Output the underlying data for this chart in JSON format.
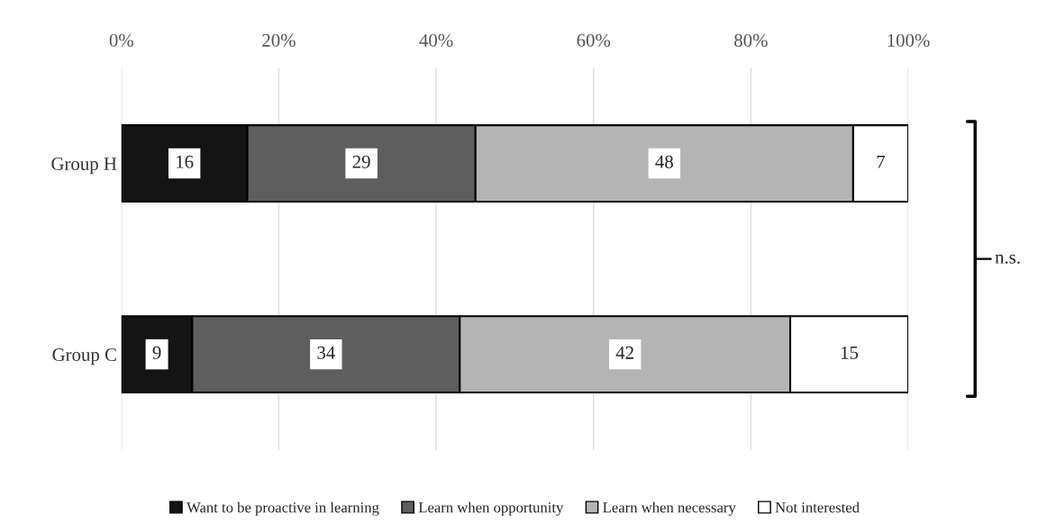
{
  "chart_data": {
    "type": "bar",
    "orientation": "horizontal",
    "stacked": true,
    "categories": [
      "Group H",
      "Group C"
    ],
    "series": [
      {
        "name": "Want to be proactive in learning",
        "color": "#141414",
        "values": [
          16,
          9
        ]
      },
      {
        "name": "Learn when opportunity",
        "color": "#5e5e5e",
        "values": [
          29,
          34
        ]
      },
      {
        "name": "Learn when necessary",
        "color": "#b4b4b4",
        "values": [
          48,
          42
        ]
      },
      {
        "name": "Not interested",
        "color": "#ffffff",
        "values": [
          7,
          15
        ]
      }
    ],
    "xlim": [
      0,
      100
    ],
    "xticks": [
      {
        "value": 0,
        "label": "0%"
      },
      {
        "value": 20,
        "label": "20%"
      },
      {
        "value": 40,
        "label": "40%"
      },
      {
        "value": 60,
        "label": "60%"
      },
      {
        "value": 80,
        "label": "80%"
      },
      {
        "value": 100,
        "label": "100%"
      }
    ],
    "grid": "x",
    "legend": "bottom",
    "data_labels": true,
    "annotations": [
      "n.s."
    ]
  }
}
